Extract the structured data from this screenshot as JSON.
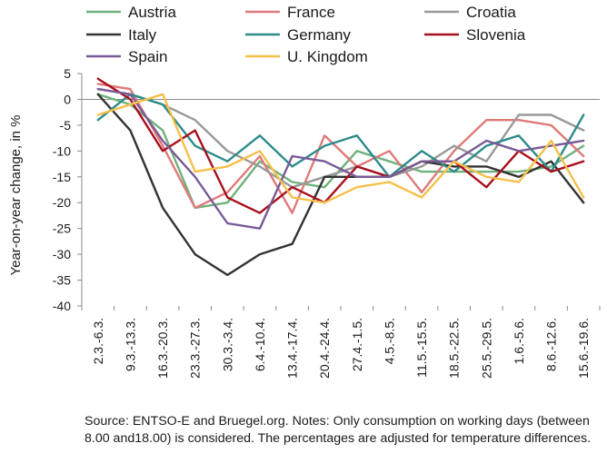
{
  "chart_data": {
    "type": "line",
    "title": "",
    "xlabel": "",
    "ylabel": "Year-on-year change, in %",
    "ylim": [
      -40,
      5
    ],
    "yticks": [
      5,
      0,
      -5,
      -10,
      -15,
      -20,
      -25,
      -30,
      -35,
      -40
    ],
    "grid": false,
    "legend": "top",
    "categories": [
      "2.3.-6.3.",
      "9.3.-13.3.",
      "16.3.-20.3.",
      "23.3.-27.3.",
      "30.3.-3.4.",
      "6.4.-10.4.",
      "13.4.-17.4.",
      "20.4.-24.4.",
      "27.4.-1.5.",
      "4.5.-8.5.",
      "11.5.-15.5.",
      "18.5.-22.5.",
      "25.5.-29.5.",
      "1.6.-5.6.",
      "8.6.-12.6.",
      "15.6.-19.6."
    ],
    "series": [
      {
        "name": "Austria",
        "color": "#6fb27c",
        "values": [
          1,
          -1,
          -6,
          -21,
          -20,
          -12,
          -16,
          -17,
          -10,
          -12,
          -14,
          -14,
          -14,
          -14,
          -13,
          -9
        ]
      },
      {
        "name": "France",
        "color": "#e07a7a",
        "values": [
          3,
          2,
          -9,
          -21,
          -18,
          -11,
          -22,
          -7,
          -13,
          -10,
          -18,
          -10,
          -4,
          -4,
          -5,
          -11
        ]
      },
      {
        "name": "Croatia",
        "color": "#999999",
        "values": [
          2,
          1,
          -1,
          -4,
          -10,
          -13,
          -17,
          -15,
          -13,
          -15,
          -13,
          -9,
          -12,
          -3,
          -3,
          -6
        ]
      },
      {
        "name": "Italy",
        "color": "#333333",
        "values": [
          1,
          -6,
          -21,
          -30,
          -34,
          -30,
          -28,
          -15,
          -15,
          -15,
          -12,
          -13,
          -13,
          -15,
          -12,
          -20
        ]
      },
      {
        "name": "Germany",
        "color": "#2e8b8b",
        "values": [
          -4,
          1,
          -1,
          -9,
          -12,
          -7,
          -13,
          -9,
          -7,
          -15,
          -10,
          -14,
          -9,
          -7,
          -14,
          -3
        ]
      },
      {
        "name": "Slovenia",
        "color": "#a8101e",
        "values": [
          4,
          0,
          -10,
          -6,
          -19,
          -22,
          -17,
          -20,
          -13,
          -15,
          -12,
          -12,
          -17,
          -10,
          -14,
          -12
        ]
      },
      {
        "name": "Spain",
        "color": "#7a5a96",
        "values": [
          2,
          1,
          -8,
          -15,
          -24,
          -25,
          -11,
          -12,
          -15,
          -15,
          -12,
          -12,
          -8,
          -10,
          -9,
          -8
        ]
      },
      {
        "name": "U. Kingdom",
        "color": "#f5c04a",
        "values": [
          -3,
          -1,
          1,
          -14,
          -13,
          -10,
          -19,
          -20,
          -17,
          -16,
          -19,
          -12,
          -15,
          -16,
          -8,
          -19
        ]
      }
    ]
  },
  "source_note": "Source: ENTSO-E and Bruegel.org. Notes: Only consumption on working days (between 8.00 and18.00) is considered. The percentages are adjusted for temperature differences."
}
